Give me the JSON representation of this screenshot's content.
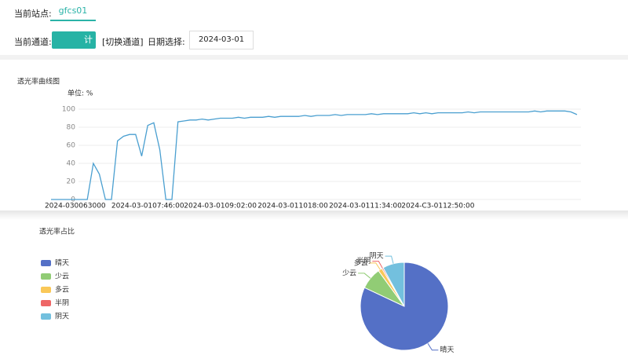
{
  "header": {
    "station_label": "当前站点:",
    "station_tab": "gfcs01",
    "channel_label": "当前通道:",
    "channel_button": "计",
    "switch_channel": "[切换通道]",
    "date_label": "日期选择:",
    "date_value": "2024-03-01"
  },
  "chart_data": [
    {
      "type": "line",
      "title": "透光率曲线图",
      "unit_label": "单位: %",
      "categories": [
        null,
        null,
        null,
        null,
        "2024-030063000",
        null,
        null,
        null,
        null,
        null,
        null,
        null,
        null,
        null,
        null,
        null,
        "2024-03-0107:46:00",
        null,
        null,
        null,
        null,
        null,
        null,
        null,
        null,
        null,
        null,
        null,
        "2024-03-0109:02:00",
        null,
        null,
        null,
        null,
        null,
        null,
        null,
        null,
        null,
        null,
        null,
        "2024-03-011018:00",
        null,
        null,
        null,
        null,
        null,
        null,
        null,
        null,
        null,
        null,
        null,
        "2024-03-0111:34:00",
        null,
        null,
        null,
        null,
        null,
        null,
        null,
        null,
        null,
        null,
        null,
        "2024-C3-0112:50:00",
        null,
        null,
        null,
        null,
        null,
        null,
        null,
        null,
        null,
        null,
        null,
        null,
        null,
        null,
        null,
        null,
        null,
        null,
        null,
        null,
        null,
        null,
        null
      ],
      "series": [
        {
          "color": "#4a9fd0",
          "values": [
            0,
            0,
            0,
            0,
            0,
            0,
            0,
            40,
            28,
            0,
            0,
            65,
            70,
            72,
            72,
            48,
            82,
            85,
            55,
            0,
            0,
            86,
            87,
            88,
            88,
            89,
            88,
            89,
            90,
            90,
            90,
            91,
            90,
            91,
            91,
            91,
            92,
            91,
            92,
            92,
            92,
            92,
            93,
            92,
            93,
            93,
            93,
            94,
            93,
            94,
            94,
            94,
            94,
            95,
            94,
            95,
            95,
            95,
            95,
            95,
            96,
            95,
            96,
            95,
            96,
            96,
            96,
            96,
            96,
            97,
            96,
            97,
            97,
            97,
            97,
            97,
            97,
            97,
            97,
            97,
            98,
            97,
            98,
            98,
            98,
            98,
            97,
            94
          ]
        }
      ],
      "ylim": [
        0,
        100
      ],
      "yticks": [
        0,
        20,
        40,
        60,
        80,
        100
      ],
      "grid": true
    },
    {
      "type": "pie",
      "title": "透光率占比",
      "categories": [
        "晴天",
        "少云",
        "多云",
        "半阴",
        "阴天"
      ],
      "values": [
        82,
        8,
        1.5,
        0.5,
        8
      ],
      "colors": [
        "#5470c6",
        "#91cc75",
        "#fac858",
        "#ee6666",
        "#73c0de"
      ],
      "legend": "left"
    }
  ]
}
